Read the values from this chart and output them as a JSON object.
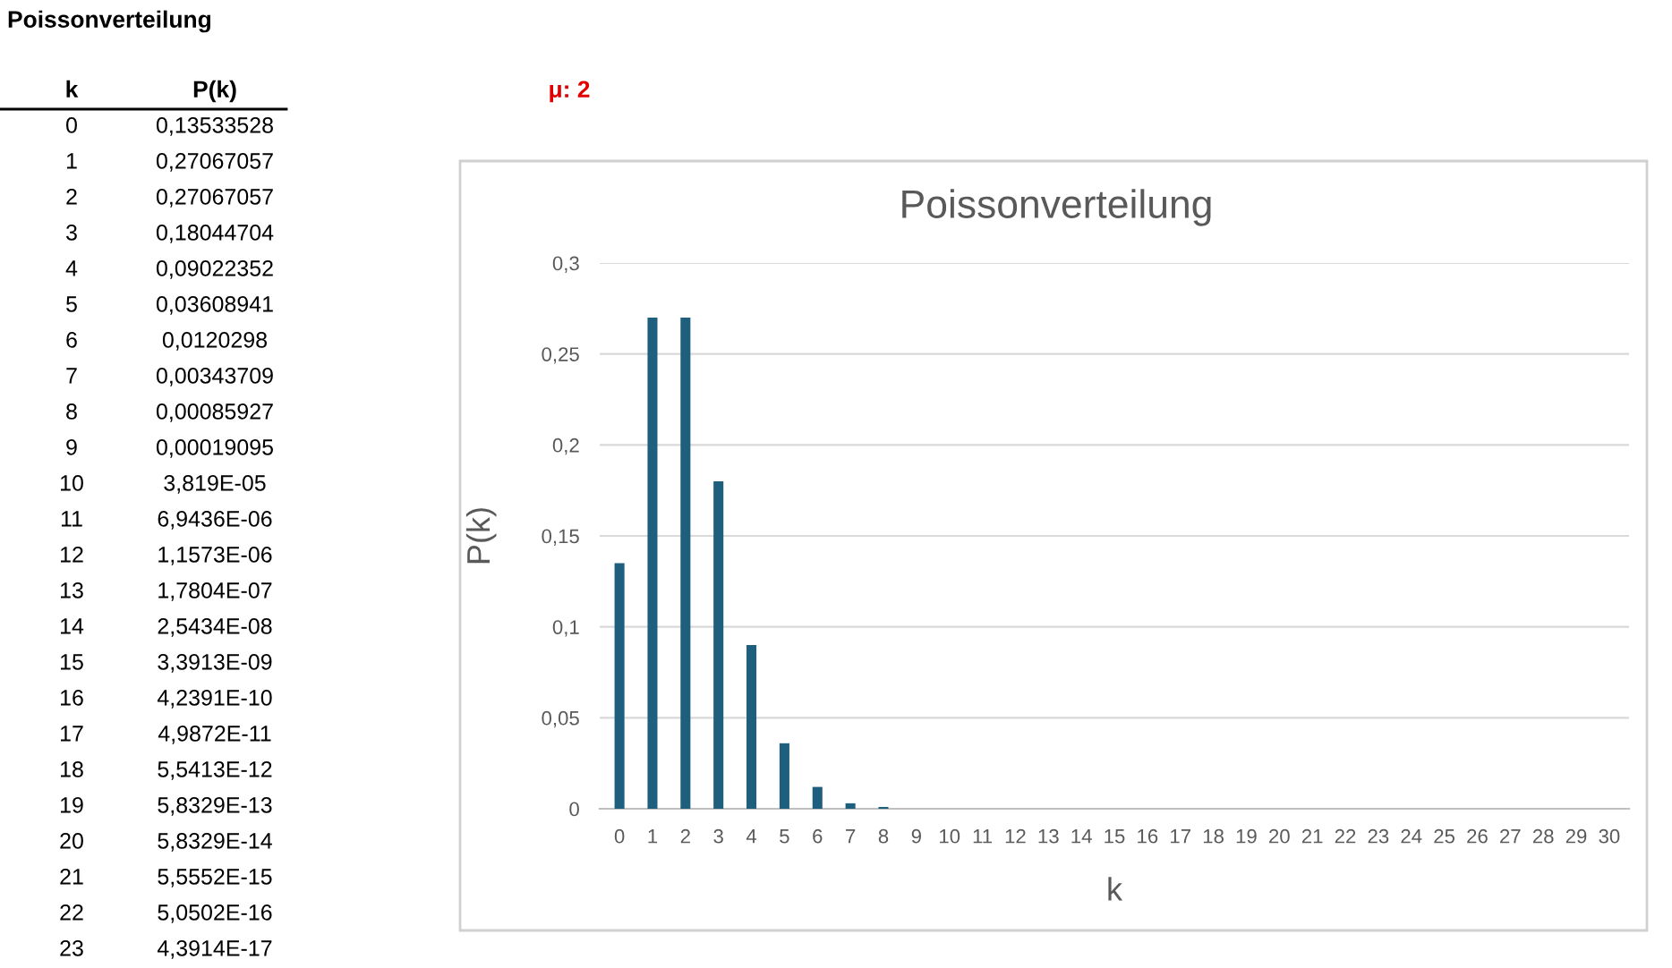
{
  "chart_data": {
    "type": "bar",
    "title": "Poissonverteilung",
    "xlabel": "k",
    "ylabel": "P(k)",
    "annotations": [
      "Poissonverteilung",
      "k",
      "P(k)",
      "μ: 2",
      "0",
      "0,13533528",
      "1",
      "0,27067057",
      "2",
      "0,27067057",
      "3",
      "0,18044704",
      "4",
      "0,09022352",
      "5",
      "0,03608941",
      "6",
      "0,0120298",
      "7",
      "0,00343709",
      "8",
      "0,00085927",
      "9",
      "0,00019095",
      "10",
      "3,819E-05",
      "11",
      "6,9436E-06",
      "12",
      "1,1573E-06",
      "13",
      "1,7804E-07",
      "14",
      "2,5434E-08",
      "15",
      "3,3913E-09",
      "16",
      "4,2391E-10",
      "17",
      "4,9872E-11",
      "18",
      "5,5413E-12",
      "19",
      "5,8329E-13",
      "20",
      "5,8329E-14",
      "21",
      "5,5552E-15",
      "22",
      "5,0502E-16",
      "23",
      "4,3914E-17"
    ],
    "categories": [
      "0",
      "1",
      "2",
      "3",
      "4",
      "5",
      "6",
      "7",
      "8",
      "9",
      "10",
      "11",
      "12",
      "13",
      "14",
      "15",
      "16",
      "17",
      "18",
      "19",
      "20",
      "21",
      "22",
      "23",
      "24",
      "25",
      "26",
      "27",
      "28",
      "29",
      "30"
    ],
    "values": [
      0.135,
      0.27,
      0.27,
      0.18,
      0.09,
      0.036,
      0.012,
      0.003,
      0.001,
      0,
      0,
      0,
      0,
      0,
      0,
      0,
      0,
      0,
      0,
      0,
      0,
      0,
      0,
      0,
      0,
      0,
      0,
      0,
      0,
      0,
      0
    ],
    "color": "#1d5f7c",
    "ylim": [
      0,
      0.3
    ],
    "yticks": [
      0,
      {
        "value": 0.05,
        "label": "0,05"
      },
      {
        "value": 0.1,
        "label": "0,1"
      },
      {
        "value": 0.15,
        "label": "0,15"
      },
      {
        "value": 0.2,
        "label": "0,2"
      },
      {
        "value": 0.25,
        "label": "0,25"
      },
      {
        "value": 0.3,
        "label": "0,3"
      }
    ],
    "grid": "y",
    "legend": false
  }
}
